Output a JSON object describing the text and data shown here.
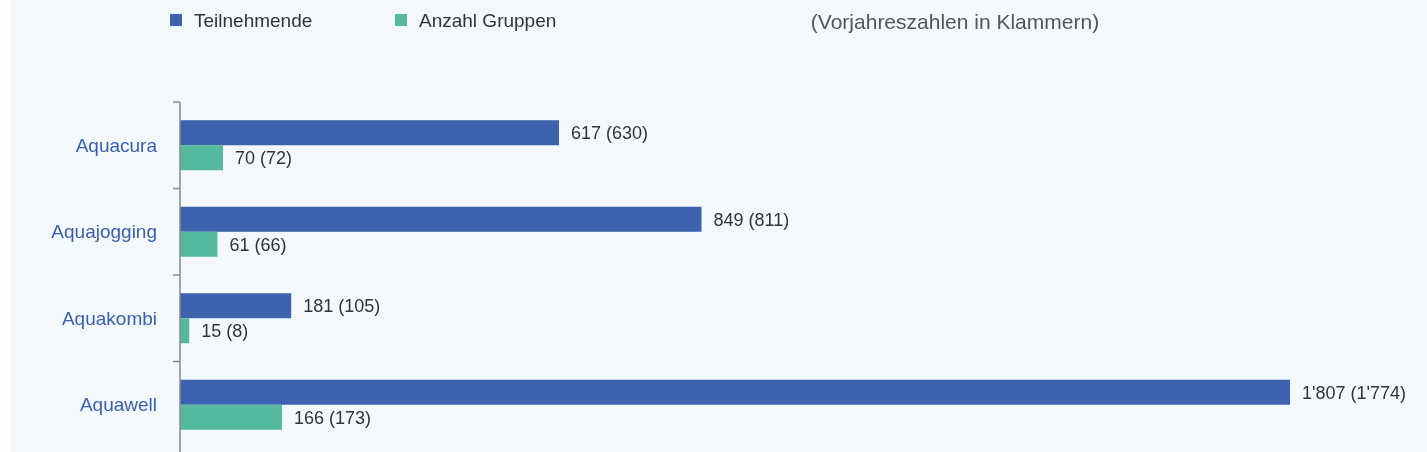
{
  "chart_data": {
    "type": "bar",
    "orientation": "horizontal",
    "categories": [
      "Aquacura",
      "Aquajogging",
      "Aquakombi",
      "Aquawell"
    ],
    "series": [
      {
        "name": "Teilnehmende",
        "color": "#3d63ae",
        "values": [
          617,
          849,
          181,
          1807
        ],
        "value_labels": [
          "617 (630)",
          "849 (811)",
          "181 (105)",
          "1'807 (1'774)"
        ]
      },
      {
        "name": "Anzahl Gruppen",
        "color": "#55b9a0",
        "values": [
          70,
          61,
          15,
          166
        ],
        "value_labels": [
          "70 (72)",
          "61 (66)",
          "15 (8)",
          "166 (173)"
        ]
      }
    ],
    "annotations": [
      "(Vorjahreszahlen in Klammern)"
    ],
    "legend": "top left"
  }
}
